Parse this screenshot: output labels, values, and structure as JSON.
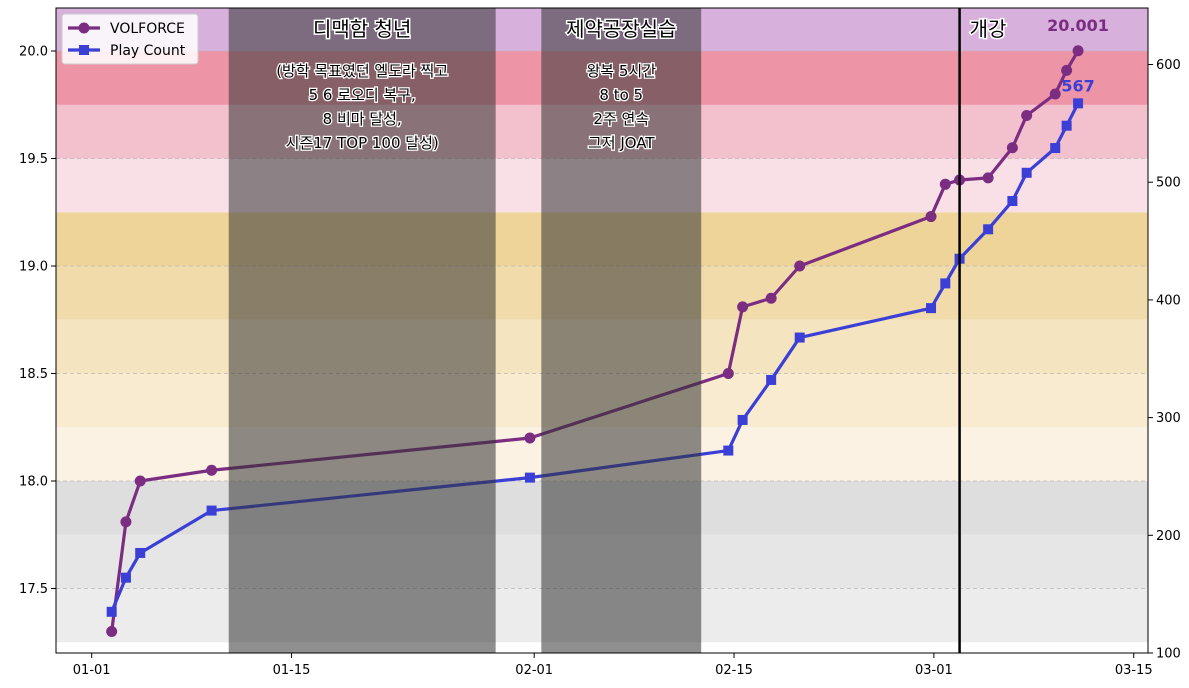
{
  "chart_data": {
    "type": "line",
    "title": "",
    "xlabel": "",
    "ylabel": "",
    "ylabel_right": "",
    "x_tick_labels": [
      "01-01",
      "01-15",
      "02-01",
      "02-15",
      "03-01",
      "03-15"
    ],
    "x_tick_days": [
      1,
      15,
      32,
      46,
      60,
      74
    ],
    "xlim": [
      -1.5,
      75
    ],
    "ylim": [
      17.2,
      20.2
    ],
    "ylim_right": [
      100,
      648
    ],
    "y_ticks": [
      17.5,
      18.0,
      18.5,
      19.0,
      19.5,
      20.0
    ],
    "y_tick_labels": [
      "17.5",
      "18.0",
      "18.5",
      "19.0",
      "19.5",
      "20.0"
    ],
    "y_ticks_right": [
      100,
      200,
      300,
      400,
      500,
      600
    ],
    "y_tick_labels_right": [
      "100",
      "200",
      "300",
      "400",
      "500",
      "600"
    ],
    "legend_position": "top-left",
    "series": [
      {
        "name": "VOLFORCE",
        "axis": "left",
        "color": "#7b2d82",
        "marker": "circle",
        "x": [
          2.4,
          3.4,
          4.4,
          9.4,
          31.7,
          45.6,
          46.6,
          48.6,
          50.6,
          59.8,
          60.8,
          61.8,
          63.8,
          65.5,
          66.5,
          68.5,
          69.3,
          70.1
        ],
        "values": [
          17.3,
          17.81,
          18.0,
          18.05,
          18.2,
          18.5,
          18.81,
          18.85,
          19.0,
          19.23,
          19.38,
          19.4,
          19.41,
          19.55,
          19.7,
          19.8,
          19.91,
          20.001
        ]
      },
      {
        "name": "Play Count",
        "axis": "right",
        "color": "#3b3fd6",
        "marker": "square",
        "x": [
          2.4,
          3.4,
          4.4,
          9.4,
          31.7,
          45.6,
          46.6,
          48.6,
          50.6,
          59.8,
          60.8,
          61.8,
          63.8,
          65.5,
          66.5,
          68.5,
          69.3,
          70.1
        ],
        "values": [
          135,
          164,
          185,
          221,
          249,
          272,
          298,
          332,
          368,
          393,
          414,
          435,
          460,
          484,
          508,
          529,
          548,
          567
        ]
      }
    ],
    "end_labels": {
      "volforce": "20.001",
      "play_count": "567"
    },
    "background_bands": [
      {
        "from": 17.2,
        "to": 17.25,
        "color": "#ffffff"
      },
      {
        "from": 17.25,
        "to": 17.5,
        "color": "#ececec"
      },
      {
        "from": 17.5,
        "to": 17.75,
        "color": "#e6e6e6"
      },
      {
        "from": 17.75,
        "to": 18.0,
        "color": "#dedede"
      },
      {
        "from": 18.0,
        "to": 18.25,
        "color": "#fbf2e3"
      },
      {
        "from": 18.25,
        "to": 18.5,
        "color": "#f8ebcf"
      },
      {
        "from": 18.5,
        "to": 18.75,
        "color": "#f5e4c0"
      },
      {
        "from": 18.75,
        "to": 19.0,
        "color": "#f1dbab"
      },
      {
        "from": 19.0,
        "to": 19.25,
        "color": "#eed499"
      },
      {
        "from": 19.25,
        "to": 19.5,
        "color": "#f9dfe6"
      },
      {
        "from": 19.5,
        "to": 19.75,
        "color": "#f3c0cd"
      },
      {
        "from": 19.75,
        "to": 20.0,
        "color": "#efacba"
      },
      {
        "from": 20.0,
        "to": 20.2,
        "color": "#ee94a7"
      },
      {
        "from": 20.2,
        "to": 20.2,
        "color": "#d9b3dc"
      }
    ],
    "top_band": {
      "from": 20.0,
      "to": 20.2,
      "color": "#d8b0dc"
    },
    "shaded_periods": [
      {
        "name": "period-1",
        "from": 10.6,
        "to": 29.3,
        "title": "디맥함 청년",
        "lines": [
          "(방학 목표였던 엘도라 찍고",
          "5 6 로오디 복구,",
          "8 비마 달성,",
          "시즌17 TOP 100 달성)"
        ]
      },
      {
        "name": "period-2",
        "from": 32.5,
        "to": 43.7,
        "title": "제약공장실습",
        "lines": [
          "왕복 5시간",
          "8 to 5",
          "2주 연속",
          "그저 JOAT"
        ]
      }
    ],
    "event_line": {
      "x": 61.8,
      "label": "개강"
    }
  }
}
